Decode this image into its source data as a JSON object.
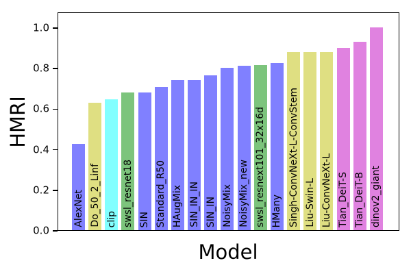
{
  "figure": {
    "ylabel": "HMRI",
    "xlabel": "Model"
  },
  "chart_data": {
    "type": "bar",
    "title": "",
    "xlabel": "Model",
    "ylabel": "HMRI",
    "ylim": [
      0,
      1.07
    ],
    "grid": false,
    "legend": null,
    "ytick_labels": [
      "0.0",
      "0.2",
      "0.4",
      "0.6",
      "0.8",
      "1.0"
    ],
    "ytick_values": [
      0.0,
      0.2,
      0.4,
      0.6,
      0.8,
      1.0
    ],
    "categories": [
      "AlexNet",
      "Do_50_2_Linf",
      "clip",
      "swsl_resnet18",
      "SIN",
      "Standard_R50",
      "HAugMix",
      "SIN_IN_IN",
      "SIN_IN",
      "NoisyMix",
      "NoisyMix_new",
      "swsl_resnext101_32x16d",
      "HMany",
      "Singh-ConvNeXt-L-ConvStem",
      "Liu-Swin-L",
      "Liu-ConvNeXt-L",
      "Tian_DeiT-S",
      "Tian_DeiT-B",
      "dinov2_giant"
    ],
    "values": [
      0.425,
      0.63,
      0.645,
      0.68,
      0.68,
      0.705,
      0.74,
      0.74,
      0.765,
      0.8,
      0.81,
      0.815,
      0.825,
      0.88,
      0.88,
      0.88,
      0.9,
      0.93,
      1.0
    ],
    "colors": [
      "#8080ff",
      "#dfdf82",
      "#82ffff",
      "#7cc47c",
      "#8080ff",
      "#8080ff",
      "#8080ff",
      "#8080ff",
      "#8080ff",
      "#8080ff",
      "#8080ff",
      "#7cc47c",
      "#8080ff",
      "#dfdf82",
      "#dfdf82",
      "#dfdf82",
      "#e082e0",
      "#e082e0",
      "#e082e0"
    ],
    "label_color": "#000000",
    "bar_label_position": "inside-bottom-vertical"
  }
}
